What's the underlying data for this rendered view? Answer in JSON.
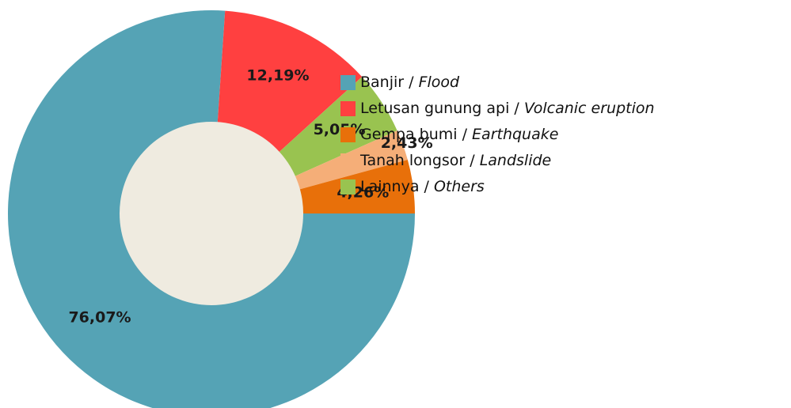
{
  "chart_data": {
    "type": "donut",
    "categories": [
      "Banjir / Flood",
      "Letusan gunung api / Volcanic eruption",
      "Lainnya / Others",
      "Tanah longsor / Landslide",
      "Gempa bumi / Earthquake"
    ],
    "values": [
      76.07,
      12.19,
      5.05,
      2.43,
      4.26
    ],
    "value_labels": [
      "76,07%",
      "12,19%",
      "5,05%",
      "2,43%",
      "4,26%"
    ],
    "colors": [
      "#55a3b5",
      "#ff4040",
      "#99c350",
      "#f5ae78",
      "#e8700a"
    ],
    "legend_order": [
      0,
      1,
      4,
      3,
      2
    ]
  }
}
